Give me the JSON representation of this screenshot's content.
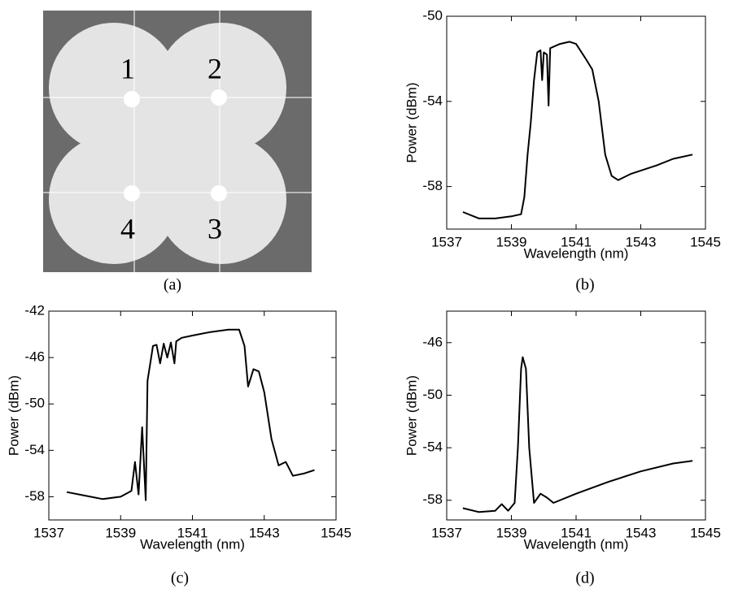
{
  "image_panel": {
    "labels": [
      "1",
      "2",
      "3",
      "4"
    ],
    "caption": "(a)"
  },
  "chart_data": [
    {
      "type": "line",
      "caption": "(b)",
      "xlabel": "Wavelength (nm)",
      "ylabel": "Power (dBm)",
      "color": "#000000",
      "xlim": [
        1537,
        1545
      ],
      "ylim": [
        -60,
        -50
      ],
      "xticks": [
        1537,
        1539,
        1541,
        1543,
        1545
      ],
      "yticks": [
        -50,
        -54,
        -58
      ],
      "x": [
        1537.5,
        1538,
        1538.5,
        1539,
        1539.3,
        1539.4,
        1539.5,
        1539.6,
        1539.7,
        1539.8,
        1539.9,
        1539.95,
        1540.0,
        1540.1,
        1540.15,
        1540.2,
        1540.5,
        1540.8,
        1541.0,
        1541.3,
        1541.5,
        1541.7,
        1541.9,
        1542.1,
        1542.3,
        1542.7,
        1543.5,
        1544,
        1544.6
      ],
      "values": [
        -59.2,
        -59.5,
        -59.5,
        -59.4,
        -59.3,
        -58.5,
        -56.5,
        -55,
        -53,
        -51.7,
        -51.6,
        -53,
        -51.7,
        -51.8,
        -54.2,
        -51.5,
        -51.3,
        -51.2,
        -51.3,
        -52,
        -52.5,
        -54,
        -56.5,
        -57.5,
        -57.7,
        -57.4,
        -57,
        -56.7,
        -56.5
      ]
    },
    {
      "type": "line",
      "caption": "(c)",
      "xlabel": "Wavelength (nm)",
      "ylabel": "Power (dBm)",
      "color": "#000000",
      "xlim": [
        1537,
        1545
      ],
      "ylim": [
        -60,
        -42
      ],
      "xticks": [
        1537,
        1539,
        1541,
        1543,
        1545
      ],
      "yticks": [
        -42,
        -46,
        -50,
        -54,
        -58
      ],
      "x": [
        1537.5,
        1538,
        1538.5,
        1539,
        1539.3,
        1539.4,
        1539.5,
        1539.6,
        1539.7,
        1539.75,
        1539.85,
        1539.9,
        1540.0,
        1540.1,
        1540.2,
        1540.3,
        1540.4,
        1540.5,
        1540.55,
        1540.7,
        1541.0,
        1541.5,
        1542.0,
        1542.3,
        1542.45,
        1542.55,
        1542.7,
        1542.85,
        1543.0,
        1543.2,
        1543.4,
        1543.6,
        1543.8,
        1544.1,
        1544.4
      ],
      "values": [
        -57.6,
        -57.9,
        -58.2,
        -58,
        -57.5,
        -55,
        -57.8,
        -52,
        -58.3,
        -48,
        -46,
        -45,
        -44.9,
        -46.5,
        -44.8,
        -46,
        -44.7,
        -46.5,
        -44.6,
        -44.3,
        -44.1,
        -43.8,
        -43.6,
        -43.6,
        -45,
        -48.5,
        -47,
        -47.2,
        -49,
        -53,
        -55.3,
        -55,
        -56.2,
        -56,
        -55.7
      ]
    },
    {
      "type": "line",
      "caption": "(d)",
      "xlabel": "Wavelength (nm)",
      "ylabel": "Power (dBm)",
      "color": "#000000",
      "xlim": [
        1537,
        1545
      ],
      "ylim": [
        -59.5,
        -43.6
      ],
      "xticks": [
        1537,
        1539,
        1541,
        1543,
        1545
      ],
      "yticks": [
        -46,
        -50,
        -54,
        -58
      ],
      "x": [
        1537.5,
        1538,
        1538.5,
        1538.7,
        1538.9,
        1539.1,
        1539.2,
        1539.3,
        1539.35,
        1539.45,
        1539.55,
        1539.7,
        1539.9,
        1540.1,
        1540.3,
        1541,
        1542,
        1543,
        1544,
        1544.6
      ],
      "values": [
        -58.6,
        -58.9,
        -58.8,
        -58.3,
        -58.8,
        -58.2,
        -54,
        -48,
        -47.1,
        -48,
        -54,
        -58.2,
        -57.5,
        -57.8,
        -58.2,
        -57.5,
        -56.6,
        -55.8,
        -55.2,
        -55
      ]
    }
  ]
}
